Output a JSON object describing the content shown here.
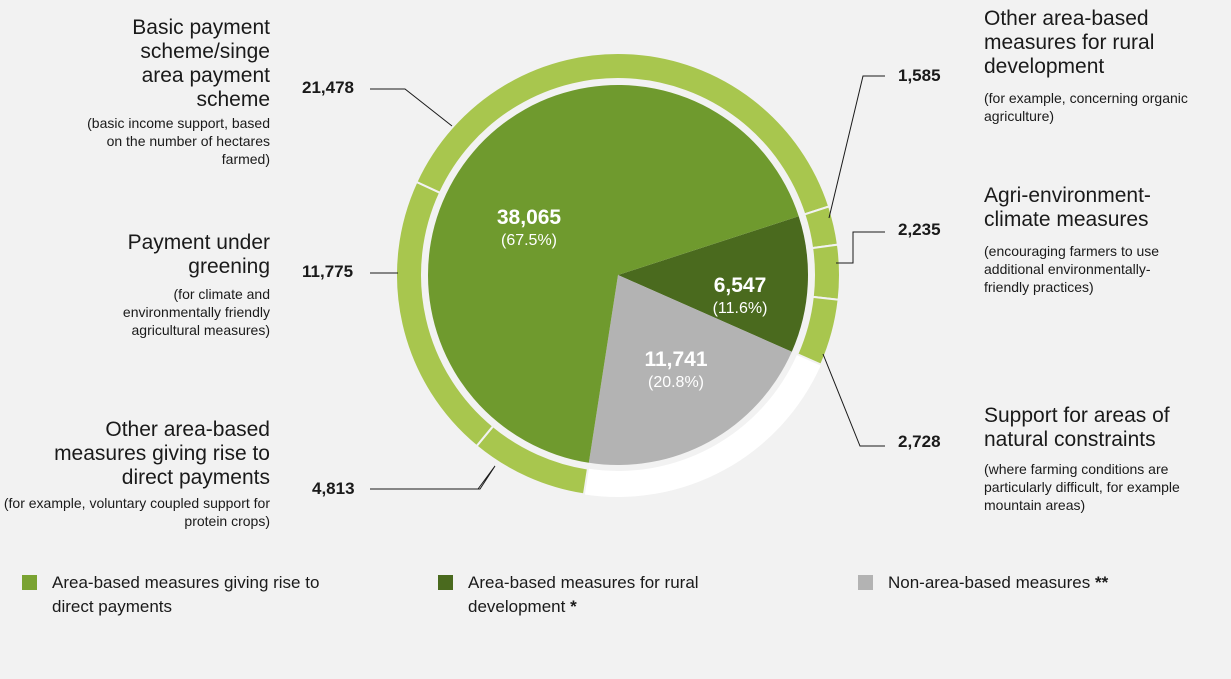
{
  "chart_data": {
    "type": "pie",
    "inner_slices": [
      {
        "name": "Area-based measures giving rise to direct payments",
        "value": 38065,
        "value_label": "38,065",
        "percent_label": "(67.5%)",
        "color": "#6f9a2e"
      },
      {
        "name": "Area-based measures for rural development",
        "value": 6547,
        "value_label": "6,547",
        "percent_label": "(11.6%)",
        "color": "#4a6a1e"
      },
      {
        "name": "Non-area-based measures",
        "value": 11741,
        "value_label": "11,741",
        "percent_label": "(20.8%)",
        "color": "#b3b3b3"
      }
    ],
    "outer_ring": [
      {
        "group": "direct",
        "title": "Basic payment scheme/singe area payment scheme",
        "subtitle": "(basic income support, based on the number of hectares farmed)",
        "value": 21478,
        "value_label": "21,478"
      },
      {
        "group": "direct",
        "title": "Payment under greening",
        "subtitle": "(for climate and environmentally friendly agricultural measures)",
        "value": 11775,
        "value_label": "11,775"
      },
      {
        "group": "direct",
        "title": "Other area-based measures giving rise to direct payments",
        "subtitle": "(for example, voluntary coupled support for  protein crops)",
        "value": 4813,
        "value_label": "4,813"
      },
      {
        "group": "rural",
        "title": "Other area-based measures for rural development",
        "subtitle": "(for example, concerning organic agriculture)",
        "value": 1585,
        "value_label": "1,585"
      },
      {
        "group": "rural",
        "title": "Agri-environment-climate measures",
        "subtitle": "(encouraging farmers to use additional environmentally-friendly practices)",
        "value": 2235,
        "value_label": "2,235"
      },
      {
        "group": "rural",
        "title": "Support for areas of natural constraints",
        "subtitle": "(where farming conditions are particularly difficult, for example mountain areas)",
        "value": 2728,
        "value_label": "2,728"
      }
    ],
    "ring_color": "#a8c64e",
    "ring_background": "#ffffff",
    "legend": [
      {
        "label": "Area-based measures giving rise to direct payments",
        "note": "",
        "color": "#7aa332"
      },
      {
        "label": "Area-based measures for rural development",
        "note": "*",
        "color": "#4a6a1e"
      },
      {
        "label": "Non-area-based measures",
        "note": "**",
        "color": "#b3b3b3"
      }
    ]
  }
}
